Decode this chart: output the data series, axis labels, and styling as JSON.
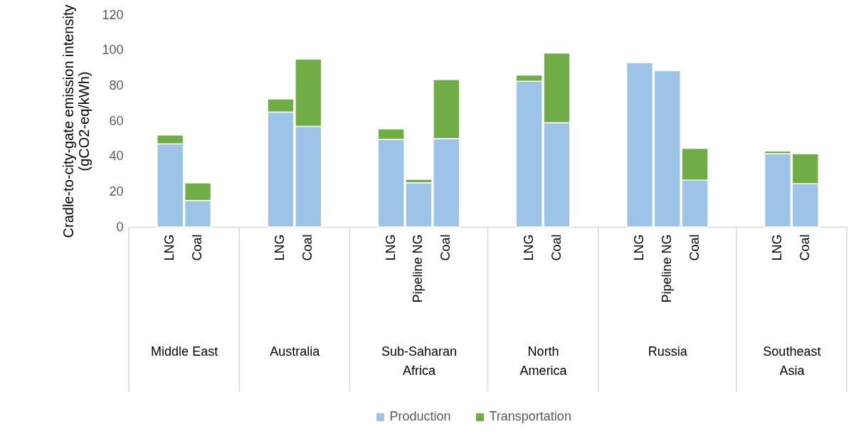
{
  "chart_data": {
    "type": "bar",
    "stacked": true,
    "ylabel": "Cradle-to-city-gate emission intensity (gCO2-eq/kWh)",
    "categories": [
      "LNG",
      "Coal",
      "LNG",
      "Coal",
      "LNG",
      "Pipeline NG",
      "Coal",
      "LNG",
      "Coal",
      "LNG",
      "Pipeline NG",
      "Coal",
      "LNG",
      "Coal"
    ],
    "series": [
      {
        "name": "Production",
        "color": "#9dc3e6",
        "values": [
          47,
          15,
          65,
          57,
          49.5,
          25,
          50,
          82.5,
          59,
          93,
          88.5,
          26.5,
          41.5,
          24.5
        ]
      },
      {
        "name": "Transportation",
        "color": "#70ad47",
        "values": [
          5,
          10,
          7.5,
          38,
          6,
          2,
          33.5,
          3.5,
          39.5,
          null,
          null,
          18,
          1.5,
          17
        ]
      }
    ],
    "annotations": [
      "Middle East",
      "Australia",
      "Sub-Saharan Africa",
      "North America",
      "Russia",
      "Southeast Asia"
    ],
    "ylim": [
      0,
      120
    ],
    "yticks": [
      0,
      20,
      40,
      60,
      80,
      100,
      120
    ],
    "legend": "bottom"
  }
}
